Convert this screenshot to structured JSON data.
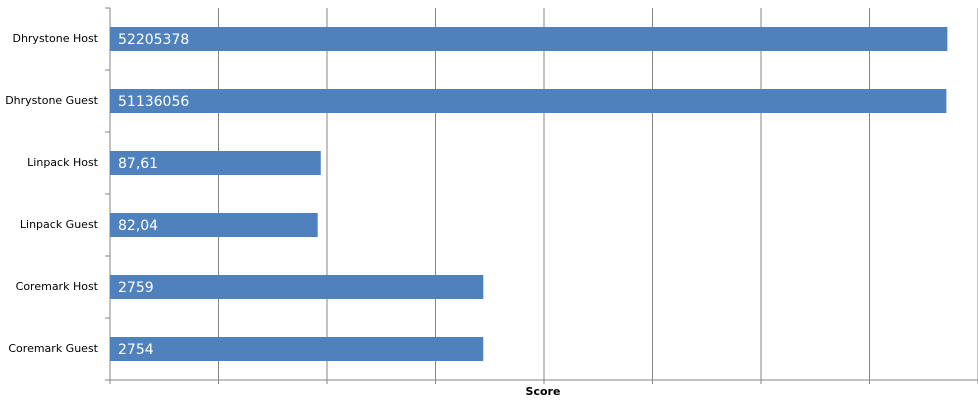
{
  "chart_data": {
    "type": "bar",
    "orientation": "horizontal",
    "x_label": "Score",
    "categories": [
      "Dhrystone Host",
      "Dhrystone Guest",
      "Linpack Host",
      "Linpack Guest",
      "Coremark Host",
      "Coremark Guest"
    ],
    "values": [
      52205378,
      51136056,
      87.61,
      82.04,
      2759,
      2754
    ],
    "value_labels": [
      "52205378",
      "51136056",
      "87,61",
      "82,04",
      "2759",
      "2754"
    ],
    "color": "#4f81bd",
    "xscale": "log",
    "xlim": [
      1,
      100000000
    ],
    "xticks": [
      1,
      10,
      100,
      1000,
      10000,
      100000,
      1000000,
      10000000,
      100000000
    ],
    "grid": true
  }
}
